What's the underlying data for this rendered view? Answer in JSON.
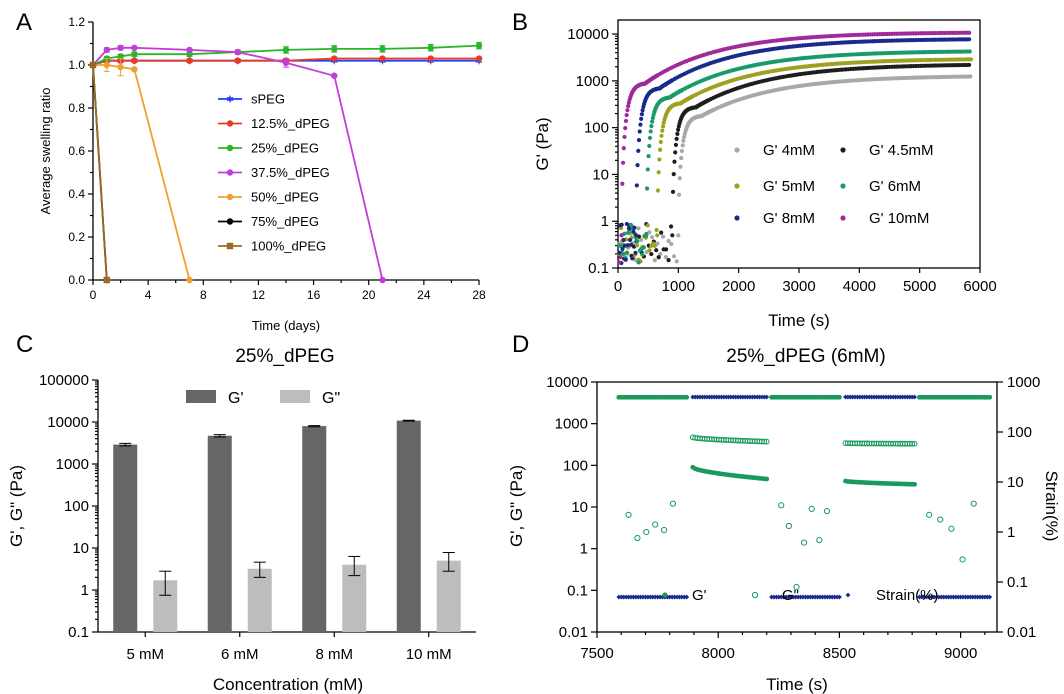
{
  "chart_data": [
    {
      "panel": "A",
      "type": "line",
      "title": "",
      "xlabel": "Time (days)",
      "ylabel": "Average swelling ratio",
      "xlim": [
        0,
        28
      ],
      "ylim": [
        0,
        1.2
      ],
      "xticks": [
        "0",
        "4",
        "8",
        "12",
        "16",
        "20",
        "24",
        "28"
      ],
      "yticks": [
        "0.0",
        "0.2",
        "0.4",
        "0.6",
        "0.8",
        "1.0",
        "1.2"
      ],
      "legend_position": "center",
      "series": [
        {
          "name": "sPEG",
          "color": "#1f3ff0",
          "marker": "star",
          "x": [
            0,
            1,
            2,
            3,
            7,
            10.5,
            14,
            17.5,
            21,
            24.5,
            28
          ],
          "y": [
            1.0,
            1.02,
            1.02,
            1.02,
            1.02,
            1.02,
            1.02,
            1.02,
            1.02,
            1.02,
            1.02
          ]
        },
        {
          "name": "12.5%_dPEG",
          "color": "#e83a2a",
          "marker": "circle",
          "x": [
            0,
            1,
            2,
            3,
            7,
            10.5,
            14,
            17.5,
            21,
            24.5,
            28
          ],
          "y": [
            1.0,
            1.02,
            1.02,
            1.02,
            1.02,
            1.02,
            1.02,
            1.03,
            1.03,
            1.03,
            1.03
          ]
        },
        {
          "name": "25%_dPEG",
          "color": "#2ab52a",
          "marker": "circle",
          "x": [
            0,
            1,
            2,
            3,
            7,
            10.5,
            14,
            17.5,
            21,
            24.5,
            28
          ],
          "y": [
            1.0,
            1.03,
            1.04,
            1.05,
            1.05,
            1.06,
            1.07,
            1.075,
            1.075,
            1.08,
            1.09
          ],
          "err": [
            0,
            0.01,
            0.01,
            0.01,
            0.01,
            0.01,
            0.015,
            0.015,
            0.015,
            0.015,
            0.015
          ]
        },
        {
          "name": "37.5%_dPEG",
          "color": "#c03fd8",
          "marker": "circle",
          "x": [
            0,
            1,
            2,
            3,
            7,
            10.5,
            14,
            17.5,
            21
          ],
          "y": [
            1.0,
            1.07,
            1.08,
            1.08,
            1.07,
            1.06,
            1.01,
            0.95,
            0.0
          ],
          "err": [
            0,
            0.01,
            0.01,
            0.005,
            0.005,
            0.005,
            0.02,
            0.005,
            0
          ]
        },
        {
          "name": "50%_dPEG",
          "color": "#f0a030",
          "marker": "circle",
          "x": [
            0,
            1,
            2,
            3,
            7
          ],
          "y": [
            1.0,
            1.0,
            0.99,
            0.98,
            0.0
          ],
          "err": [
            0,
            0.03,
            0.04,
            0.005,
            0
          ]
        },
        {
          "name": "75%_dPEG",
          "color": "#000000",
          "marker": "circle",
          "x": [
            0,
            1
          ],
          "y": [
            1.0,
            0.0
          ]
        },
        {
          "name": "100%_dPEG",
          "color": "#9a6a20",
          "marker": "square",
          "x": [
            0,
            1
          ],
          "y": [
            1.0,
            0.0
          ]
        }
      ]
    },
    {
      "panel": "B",
      "type": "scatter",
      "title": "",
      "xlabel": "Time (s)",
      "ylabel": "G' (Pa)",
      "xlim": [
        0,
        6000
      ],
      "ylim": [
        0.1,
        20000
      ],
      "yscale": "log",
      "xticks": [
        "0",
        "1000",
        "2000",
        "3000",
        "4000",
        "5000",
        "6000"
      ],
      "yticks": [
        "0.1",
        "1",
        "10",
        "100",
        "1000",
        "10000"
      ],
      "legend_position": "right",
      "series": [
        {
          "name": "G' 4mM",
          "color": "#a8a8a8",
          "onset_s": 1000,
          "plateau_Pa": 1300,
          "end_Pa": 1300
        },
        {
          "name": "G' 4.5mM",
          "color": "#1e1e1e",
          "onset_s": 900,
          "plateau_Pa": 2300,
          "end_Pa": 2300
        },
        {
          "name": "G' 5mM",
          "color": "#a0a020",
          "onset_s": 650,
          "plateau_Pa": 3000,
          "end_Pa": 3000
        },
        {
          "name": "G' 6mM",
          "color": "#1a9a6a",
          "onset_s": 470,
          "plateau_Pa": 4400,
          "end_Pa": 4400
        },
        {
          "name": "G' 8mM",
          "color": "#1a2a8a",
          "onset_s": 300,
          "plateau_Pa": 8000,
          "end_Pa": 8000
        },
        {
          "name": "G' 10mM",
          "color": "#a02a9a",
          "onset_s": 60,
          "plateau_Pa": 11000,
          "end_Pa": 11000
        }
      ]
    },
    {
      "panel": "C",
      "type": "bar",
      "title": "25%_dPEG",
      "xlabel": "Concentration (mM)",
      "ylabel": "G', G\" (Pa)",
      "yscale": "log",
      "ylim": [
        0.1,
        100000
      ],
      "yticks": [
        "0.1",
        "1",
        "10",
        "100",
        "1000",
        "10000",
        "100000"
      ],
      "categories": [
        "5 mM",
        "6 mM",
        "8 mM",
        "10 mM"
      ],
      "legend_position": "top",
      "series": [
        {
          "name": "G'",
          "color": "#666666",
          "values": [
            2900,
            4700,
            8000,
            10800
          ],
          "err_low": [
            2700,
            4400,
            7700,
            10500
          ],
          "err_high": [
            3100,
            5000,
            8200,
            11000
          ]
        },
        {
          "name": "G\"",
          "color": "#bdbdbd",
          "values": [
            1.7,
            3.2,
            4.0,
            5.0
          ],
          "err_low": [
            0.75,
            2.0,
            2.2,
            2.8
          ],
          "err_high": [
            2.8,
            4.6,
            6.3,
            7.8
          ]
        }
      ]
    },
    {
      "panel": "D",
      "type": "scatter",
      "title": "25%_dPEG (6mM)",
      "xlabel": "Time (s)",
      "ylabel": "G', G\" (Pa)",
      "ylabel_right": "Strain(%)",
      "xlim": [
        7500,
        9150
      ],
      "ylim": [
        0.01,
        10000
      ],
      "ylim_right": [
        0.01,
        1000
      ],
      "yscale": "log",
      "xticks": [
        "7500",
        "8000",
        "8500",
        "9000"
      ],
      "yticks": [
        "0.01",
        "0.1",
        "1",
        "10",
        "100",
        "1000",
        "10000"
      ],
      "yticks_right": [
        "0.01",
        "0.1",
        "1",
        "10",
        "100",
        "1000"
      ],
      "legend_position": "bottom",
      "segments": [
        {
          "t0": 7590,
          "t1": 7870,
          "strain": 0.05,
          "Gp_start": 4300,
          "Gp_end": 4300,
          "Gpp": [
            6.5,
            1.8,
            2.5,
            3.8,
            2.8,
            12
          ]
        },
        {
          "t0": 7895,
          "t1": 8200,
          "strain": 500,
          "Gp_start": 90,
          "Gp_end": 47,
          "Gpp_start": 470,
          "Gpp_end": 370
        },
        {
          "t0": 8220,
          "t1": 8500,
          "strain": 0.05,
          "Gp_start": 4300,
          "Gp_end": 4300,
          "Gpp": [
            11,
            3.5,
            0.12,
            1.4,
            9,
            1.6,
            8
          ]
        },
        {
          "t0": 8525,
          "t1": 8810,
          "strain": 500,
          "Gp_start": 42,
          "Gp_end": 35,
          "Gpp_start": 340,
          "Gpp_end": 330
        },
        {
          "t0": 8830,
          "t1": 9120,
          "strain": 0.05,
          "Gp_start": 4300,
          "Gp_end": 4300,
          "Gpp": [
            6.5,
            5.0,
            3.0,
            0.55,
            12
          ]
        }
      ],
      "series": [
        {
          "name": "G'",
          "color": "#1a9a5a",
          "marker": "filled-circle"
        },
        {
          "name": "G\"",
          "color": "#1a9a5a",
          "marker": "open-circle"
        },
        {
          "name": "Strain(%)",
          "color": "#1a2a8a",
          "marker": "diamond"
        }
      ]
    }
  ],
  "panel_labels": [
    "A",
    "B",
    "C",
    "D"
  ]
}
